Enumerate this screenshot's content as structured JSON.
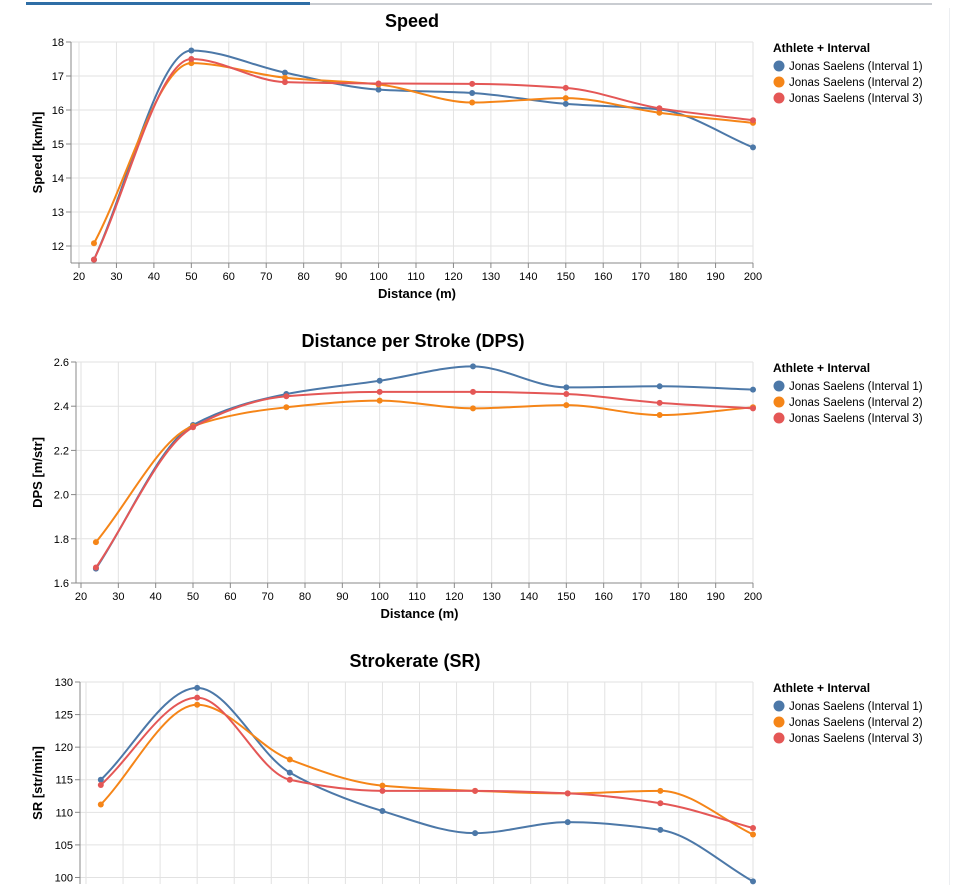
{
  "legend_title": "Athlete + Interval",
  "colors": {
    "Jonas Saelens (Interval 1)": "#4c78a8",
    "Jonas Saelens (Interval 2)": "#f58518",
    "Jonas Saelens (Interval 3)": "#e45756"
  },
  "chart_data": [
    {
      "type": "line",
      "title": "Speed",
      "xlabel": "Distance (m)",
      "ylabel": "Speed [km/h]",
      "xlim": [
        20,
        200
      ],
      "ylim": [
        11.5,
        18
      ],
      "xticks": [
        20,
        30,
        40,
        50,
        60,
        70,
        80,
        90,
        100,
        110,
        120,
        130,
        140,
        150,
        160,
        170,
        180,
        190,
        200
      ],
      "yticks": [
        12,
        13,
        14,
        15,
        16,
        17,
        18
      ],
      "grid": true,
      "legend": "top-right",
      "x": [
        24,
        50,
        75,
        100,
        125,
        150,
        175,
        200
      ],
      "series": [
        {
          "name": "Jonas Saelens (Interval 1)",
          "values": [
            11.6,
            17.75,
            17.1,
            16.6,
            16.5,
            16.18,
            16.02,
            14.9
          ]
        },
        {
          "name": "Jonas Saelens (Interval 2)",
          "values": [
            12.08,
            17.38,
            16.95,
            16.75,
            16.22,
            16.35,
            15.92,
            15.62
          ]
        },
        {
          "name": "Jonas Saelens (Interval 3)",
          "values": [
            11.6,
            17.5,
            16.82,
            16.78,
            16.77,
            16.65,
            16.05,
            15.7
          ]
        }
      ]
    },
    {
      "type": "line",
      "title": "Distance per Stroke (DPS)",
      "xlabel": "Distance (m)",
      "ylabel": "DPS [m/str]",
      "xlim": [
        20,
        200
      ],
      "ylim": [
        1.6,
        2.6
      ],
      "xticks": [
        20,
        30,
        40,
        50,
        60,
        70,
        80,
        90,
        100,
        110,
        120,
        130,
        140,
        150,
        160,
        170,
        180,
        190,
        200
      ],
      "yticks": [
        1.6,
        1.8,
        2.0,
        2.2,
        2.4,
        2.6
      ],
      "ytick_labels": [
        "1.6",
        "1.8",
        "2.0",
        "2.2",
        "2.4",
        "2.6"
      ],
      "grid": true,
      "legend": "top-right",
      "x": [
        24,
        50,
        75,
        100,
        125,
        150,
        175,
        200
      ],
      "series": [
        {
          "name": "Jonas Saelens (Interval 1)",
          "values": [
            1.665,
            2.315,
            2.455,
            2.515,
            2.58,
            2.485,
            2.49,
            2.475
          ]
        },
        {
          "name": "Jonas Saelens (Interval 2)",
          "values": [
            1.785,
            2.31,
            2.395,
            2.425,
            2.39,
            2.405,
            2.36,
            2.395
          ]
        },
        {
          "name": "Jonas Saelens (Interval 3)",
          "values": [
            1.67,
            2.305,
            2.445,
            2.465,
            2.465,
            2.455,
            2.415,
            2.39
          ]
        }
      ]
    },
    {
      "type": "line",
      "title": "Strokerate (SR)",
      "xlabel": "",
      "ylabel": "SR [str/min]",
      "xlim": [
        20,
        200
      ],
      "ylim": [
        99,
        130
      ],
      "yticks": [
        100,
        105,
        110,
        115,
        120,
        125,
        130
      ],
      "grid": true,
      "legend": "top-right",
      "x": [
        24,
        50,
        75,
        100,
        125,
        150,
        175,
        200
      ],
      "series": [
        {
          "name": "Jonas Saelens (Interval 1)",
          "values": [
            115.0,
            129.1,
            116.1,
            110.2,
            106.8,
            108.5,
            107.3,
            99.4
          ]
        },
        {
          "name": "Jonas Saelens (Interval 2)",
          "values": [
            111.2,
            126.5,
            118.1,
            114.1,
            113.3,
            112.9,
            113.3,
            106.6
          ]
        },
        {
          "name": "Jonas Saelens (Interval 3)",
          "values": [
            114.2,
            127.6,
            115.0,
            113.3,
            113.3,
            112.9,
            111.4,
            107.6
          ]
        }
      ]
    }
  ]
}
